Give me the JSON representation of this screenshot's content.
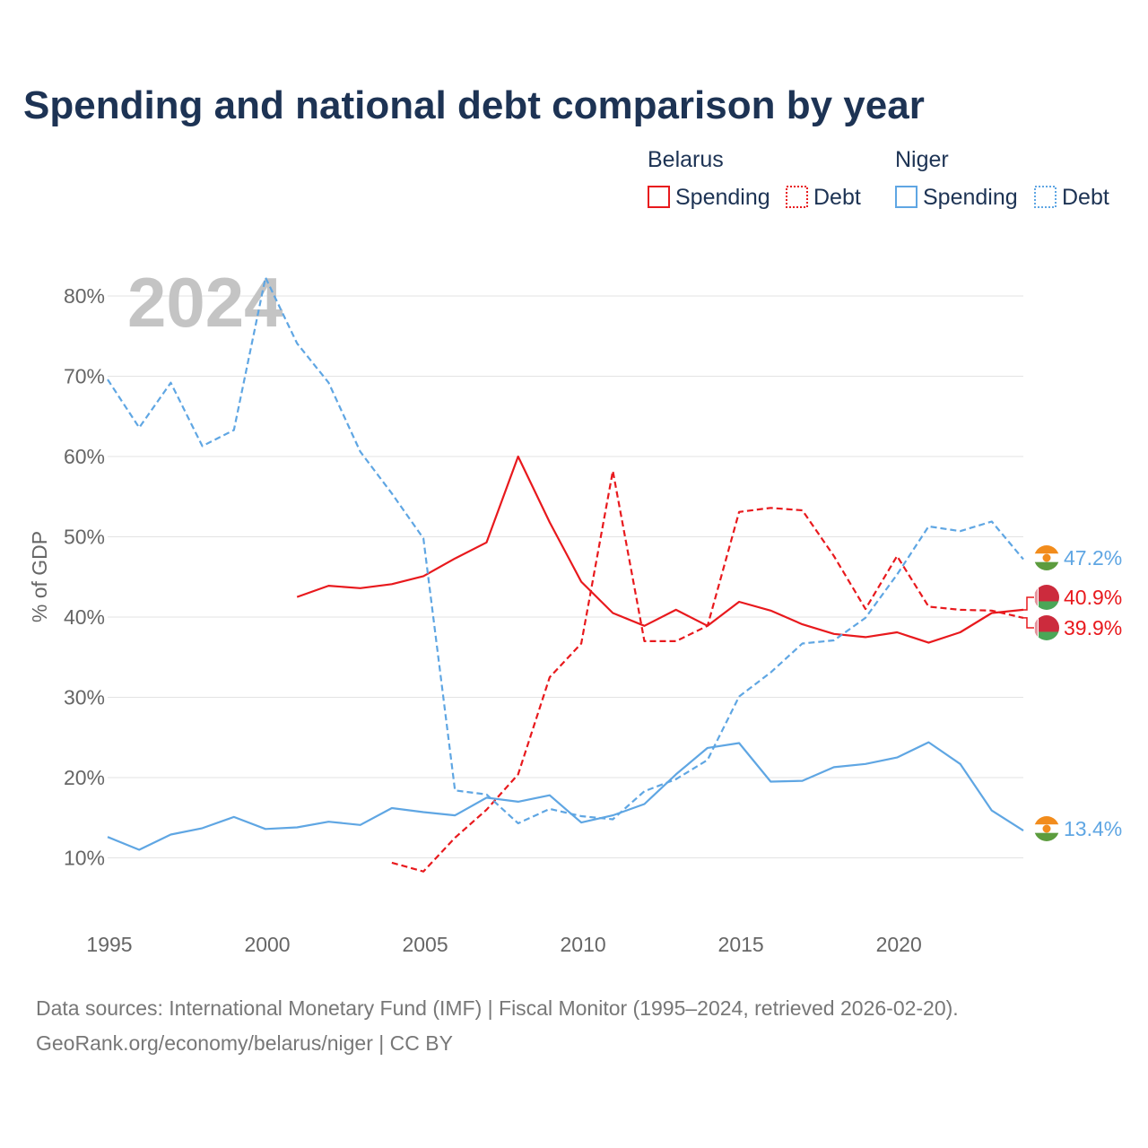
{
  "title": "Spending and national debt comparison by year",
  "year_watermark": "2024",
  "legend": {
    "groups": [
      {
        "country": "Belarus",
        "color": "#e8191d",
        "items": [
          "Spending",
          "Debt"
        ]
      },
      {
        "country": "Niger",
        "color": "#5fa6e3",
        "items": [
          "Spending",
          "Debt"
        ]
      }
    ]
  },
  "chart_data": {
    "type": "line",
    "title": "Spending and national debt comparison by year",
    "xlabel": "",
    "ylabel": "% of GDP",
    "xlim": [
      1995,
      2024
    ],
    "ylim": [
      3,
      86
    ],
    "x_ticks": [
      1995,
      2000,
      2005,
      2010,
      2015,
      2020
    ],
    "y_ticks": [
      10,
      20,
      30,
      40,
      50,
      60,
      70,
      80
    ],
    "y_tick_labels": [
      "10%",
      "20%",
      "30%",
      "40%",
      "50%",
      "60%",
      "70%",
      "80%"
    ],
    "grid": true,
    "series": [
      {
        "name": "Belarus Spending",
        "country": "Belarus",
        "metric": "Spending",
        "color": "#e8191d",
        "dash": "solid",
        "points": [
          [
            2001,
            42.5
          ],
          [
            2002,
            43.9
          ],
          [
            2003,
            43.6
          ],
          [
            2004,
            44.1
          ],
          [
            2005,
            45.1
          ],
          [
            2006,
            47.3
          ],
          [
            2007,
            49.3
          ],
          [
            2008,
            60.0
          ],
          [
            2009,
            51.8
          ],
          [
            2010,
            44.4
          ],
          [
            2011,
            40.5
          ],
          [
            2012,
            38.9
          ],
          [
            2013,
            40.9
          ],
          [
            2014,
            38.9
          ],
          [
            2015,
            41.9
          ],
          [
            2016,
            40.8
          ],
          [
            2017,
            39.1
          ],
          [
            2018,
            37.9
          ],
          [
            2019,
            37.5
          ],
          [
            2020,
            38.1
          ],
          [
            2021,
            36.8
          ],
          [
            2022,
            38.1
          ],
          [
            2023,
            40.5
          ],
          [
            2024,
            40.9
          ]
        ],
        "end_label": "40.9%"
      },
      {
        "name": "Belarus Debt",
        "country": "Belarus",
        "metric": "Debt",
        "color": "#e8191d",
        "dash": "dashed",
        "points": [
          [
            2004,
            9.4
          ],
          [
            2005,
            8.3
          ],
          [
            2006,
            12.5
          ],
          [
            2007,
            16.0
          ],
          [
            2008,
            20.4
          ],
          [
            2009,
            32.5
          ],
          [
            2010,
            36.7
          ],
          [
            2011,
            58.2
          ],
          [
            2012,
            37.0
          ],
          [
            2013,
            37.0
          ],
          [
            2014,
            38.9
          ],
          [
            2015,
            53.1
          ],
          [
            2016,
            53.6
          ],
          [
            2017,
            53.3
          ],
          [
            2018,
            47.6
          ],
          [
            2019,
            41.0
          ],
          [
            2020,
            47.6
          ],
          [
            2021,
            41.3
          ],
          [
            2022,
            40.9
          ],
          [
            2023,
            40.8
          ],
          [
            2024,
            39.9
          ]
        ],
        "end_label": "39.9%"
      },
      {
        "name": "Niger Spending",
        "country": "Niger",
        "metric": "Spending",
        "color": "#5fa6e3",
        "dash": "solid",
        "points": [
          [
            1995,
            12.6
          ],
          [
            1996,
            11.0
          ],
          [
            1997,
            12.9
          ],
          [
            1998,
            13.7
          ],
          [
            1999,
            15.1
          ],
          [
            2000,
            13.6
          ],
          [
            2001,
            13.8
          ],
          [
            2002,
            14.5
          ],
          [
            2003,
            14.1
          ],
          [
            2004,
            16.2
          ],
          [
            2005,
            15.7
          ],
          [
            2006,
            15.3
          ],
          [
            2007,
            17.5
          ],
          [
            2008,
            17.0
          ],
          [
            2009,
            17.8
          ],
          [
            2010,
            14.4
          ],
          [
            2011,
            15.3
          ],
          [
            2012,
            16.7
          ],
          [
            2013,
            20.4
          ],
          [
            2014,
            23.7
          ],
          [
            2015,
            24.3
          ],
          [
            2016,
            19.5
          ],
          [
            2017,
            19.6
          ],
          [
            2018,
            21.3
          ],
          [
            2019,
            21.7
          ],
          [
            2020,
            22.5
          ],
          [
            2021,
            24.4
          ],
          [
            2022,
            21.7
          ],
          [
            2023,
            15.9
          ],
          [
            2024,
            13.4
          ]
        ],
        "end_label": "13.4%"
      },
      {
        "name": "Niger Debt",
        "country": "Niger",
        "metric": "Debt",
        "color": "#5fa6e3",
        "dash": "dashed",
        "points": [
          [
            1995,
            69.6
          ],
          [
            1996,
            63.6
          ],
          [
            1997,
            69.2
          ],
          [
            1998,
            61.3
          ],
          [
            1999,
            63.3
          ],
          [
            2000,
            82.3
          ],
          [
            2001,
            74.1
          ],
          [
            2002,
            69.2
          ],
          [
            2003,
            60.6
          ],
          [
            2004,
            55.4
          ],
          [
            2005,
            49.8
          ],
          [
            2006,
            18.4
          ],
          [
            2007,
            17.9
          ],
          [
            2008,
            14.3
          ],
          [
            2009,
            16.1
          ],
          [
            2010,
            15.2
          ],
          [
            2011,
            14.8
          ],
          [
            2012,
            18.3
          ],
          [
            2013,
            19.8
          ],
          [
            2014,
            22.2
          ],
          [
            2015,
            30.1
          ],
          [
            2016,
            33.1
          ],
          [
            2017,
            36.7
          ],
          [
            2018,
            37.1
          ],
          [
            2019,
            39.9
          ],
          [
            2020,
            45.3
          ],
          [
            2021,
            51.3
          ],
          [
            2022,
            50.7
          ],
          [
            2023,
            51.9
          ],
          [
            2024,
            47.2
          ]
        ],
        "end_label": "47.2%"
      }
    ]
  },
  "source": {
    "line1": "Data sources: International Monetary Fund (IMF) | Fiscal Monitor (1995–2024, retrieved 2026-02-20).",
    "line2": "GeoRank.org/economy/belarus/niger | CC BY"
  }
}
